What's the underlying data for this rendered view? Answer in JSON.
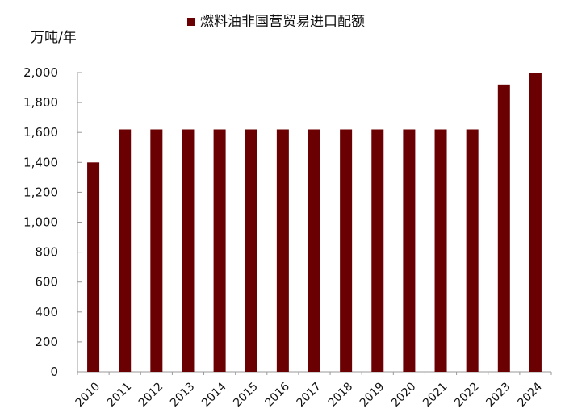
{
  "chart_data": {
    "type": "bar",
    "title": "",
    "xlabel": "",
    "ylabel": "万吨/年",
    "categories": [
      "2010",
      "2011",
      "2012",
      "2013",
      "2014",
      "2015",
      "2016",
      "2017",
      "2018",
      "2019",
      "2020",
      "2021",
      "2022",
      "2023",
      "2024"
    ],
    "series": [
      {
        "name": "燃料油非国营贸易进口配额",
        "values": [
          1400,
          1620,
          1620,
          1620,
          1620,
          1620,
          1620,
          1620,
          1620,
          1620,
          1620,
          1620,
          1620,
          1920,
          2000
        ]
      }
    ],
    "ylim": [
      0,
      2000
    ],
    "yticks": [
      0,
      200,
      400,
      600,
      800,
      1000,
      1200,
      1400,
      1600,
      1800,
      2000
    ],
    "ytick_labels": [
      "0",
      "200",
      "400",
      "600",
      "800",
      "1,000",
      "1,200",
      "1,400",
      "1,600",
      "1,800",
      "2,000"
    ],
    "grid": false,
    "legend": "top-center",
    "colors": {
      "bar": "#6B0003",
      "axis": "#999999"
    }
  }
}
